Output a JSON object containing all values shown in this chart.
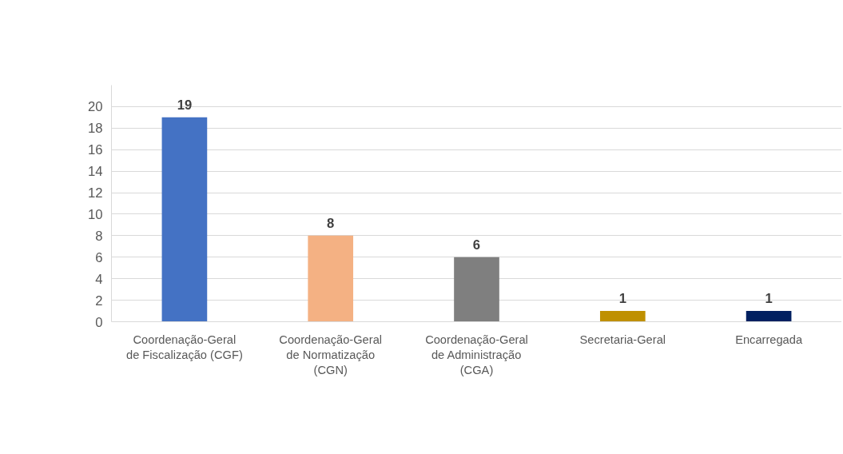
{
  "chart_data": {
    "type": "bar",
    "categories": [
      "Coordenação-Geral\nde Fiscalização (CGF)",
      "Coordenação-Geral\nde Normatização\n(CGN)",
      "Coordenação-Geral\nde Administração\n(CGA)",
      "Secretaria-Geral",
      "Encarregada"
    ],
    "values": [
      19,
      8,
      6,
      1,
      1
    ],
    "colors": [
      "#4472c4",
      "#f4b183",
      "#7f7f7f",
      "#bf9000",
      "#002060"
    ],
    "ylim": [
      0,
      22
    ],
    "yticks": [
      0,
      2,
      4,
      6,
      8,
      10,
      12,
      14,
      16,
      18,
      20
    ],
    "grid": "y",
    "data_labels": true
  }
}
